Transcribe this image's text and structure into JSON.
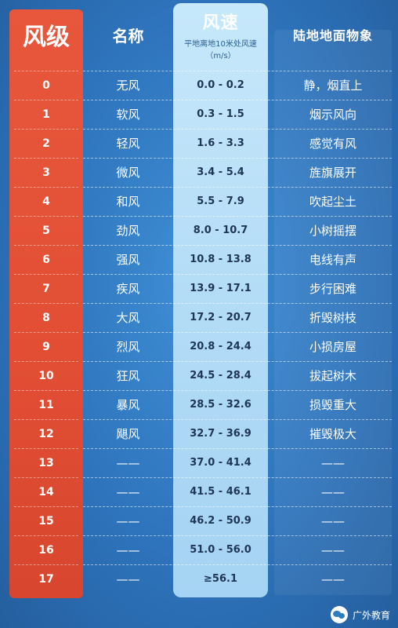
{
  "headers": {
    "level": "风级",
    "name": "名称",
    "speed": "风速",
    "speed_sub": "平地离地10米处风速",
    "speed_unit": "（m/s）",
    "observation": "陆地地面物象"
  },
  "rows": [
    {
      "level": "0",
      "name": "无风",
      "speed": "0.0 - 0.2",
      "obs": "静，烟直上"
    },
    {
      "level": "1",
      "name": "软风",
      "speed": "0.3 - 1.5",
      "obs": "烟示风向"
    },
    {
      "level": "2",
      "name": "轻风",
      "speed": "1.6 - 3.3",
      "obs": "感觉有风"
    },
    {
      "level": "3",
      "name": "微风",
      "speed": "3.4 - 5.4",
      "obs": "旌旗展开"
    },
    {
      "level": "4",
      "name": "和风",
      "speed": "5.5 - 7.9",
      "obs": "吹起尘土"
    },
    {
      "level": "5",
      "name": "劲风",
      "speed": "8.0 - 10.7",
      "obs": "小树摇摆"
    },
    {
      "level": "6",
      "name": "强风",
      "speed": "10.8 - 13.8",
      "obs": "电线有声"
    },
    {
      "level": "7",
      "name": "疾风",
      "speed": "13.9 - 17.1",
      "obs": "步行困难"
    },
    {
      "level": "8",
      "name": "大风",
      "speed": "17.2 - 20.7",
      "obs": "折毁树枝"
    },
    {
      "level": "9",
      "name": "烈风",
      "speed": "20.8 - 24.4",
      "obs": "小损房屋"
    },
    {
      "level": "10",
      "name": "狂风",
      "speed": "24.5 - 28.4",
      "obs": "拔起树木"
    },
    {
      "level": "11",
      "name": "暴风",
      "speed": "28.5 - 32.6",
      "obs": "损毁重大"
    },
    {
      "level": "12",
      "name": "飓风",
      "speed": "32.7 - 36.9",
      "obs": "摧毁极大"
    },
    {
      "level": "13",
      "name": "——",
      "speed": "37.0 - 41.4",
      "obs": "——"
    },
    {
      "level": "14",
      "name": "——",
      "speed": "41.5 - 46.1",
      "obs": "——"
    },
    {
      "level": "15",
      "name": "——",
      "speed": "46.2 - 50.9",
      "obs": "——"
    },
    {
      "level": "16",
      "name": "——",
      "speed": "51.0 - 56.0",
      "obs": "——"
    },
    {
      "level": "17",
      "name": "——",
      "speed": "≥56.1",
      "obs": "——"
    }
  ],
  "watermark": "广外教育",
  "colors": {
    "background": "#2e74bc",
    "level_column": "#e14e34",
    "speed_column": "#b3dcf6"
  }
}
